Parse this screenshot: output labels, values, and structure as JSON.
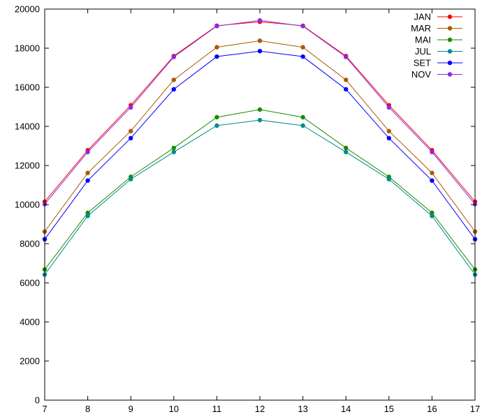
{
  "chart_data": {
    "type": "line",
    "title": "",
    "xlabel": "",
    "ylabel": "",
    "x": [
      7,
      8,
      9,
      10,
      11,
      12,
      13,
      14,
      15,
      16,
      17
    ],
    "xlim": [
      7,
      17
    ],
    "ylim": [
      0,
      20000
    ],
    "x_ticks": [
      7,
      8,
      9,
      10,
      11,
      12,
      13,
      14,
      15,
      16,
      17
    ],
    "y_ticks": [
      0,
      2000,
      4000,
      6000,
      8000,
      10000,
      12000,
      14000,
      16000,
      18000,
      20000
    ],
    "grid": false,
    "legend_position": "top-right",
    "series": [
      {
        "name": "JAN",
        "color": "#ff0000",
        "values": [
          10150,
          12780,
          15080,
          17600,
          19150,
          19350,
          19150,
          17600,
          15080,
          12780,
          10150
        ]
      },
      {
        "name": "MAR",
        "color": "#a85a00",
        "values": [
          8620,
          11620,
          13760,
          16380,
          18050,
          18380,
          18050,
          16380,
          13760,
          11620,
          8620
        ]
      },
      {
        "name": "MAI",
        "color": "#1b8a00",
        "values": [
          6680,
          9580,
          11420,
          12900,
          14470,
          14860,
          14470,
          12900,
          11420,
          9580,
          6680
        ]
      },
      {
        "name": "JUL",
        "color": "#008b8b",
        "values": [
          6420,
          9420,
          11300,
          12690,
          14040,
          14320,
          14040,
          12690,
          11300,
          9420,
          6420
        ]
      },
      {
        "name": "SET",
        "color": "#0000ff",
        "values": [
          8230,
          11230,
          13400,
          15900,
          17570,
          17850,
          17570,
          15900,
          13400,
          11230,
          8230
        ]
      },
      {
        "name": "NOV",
        "color": "#8a2be2",
        "values": [
          10020,
          12690,
          14970,
          17550,
          19130,
          19420,
          19130,
          17550,
          14970,
          12690,
          10020
        ]
      }
    ]
  }
}
